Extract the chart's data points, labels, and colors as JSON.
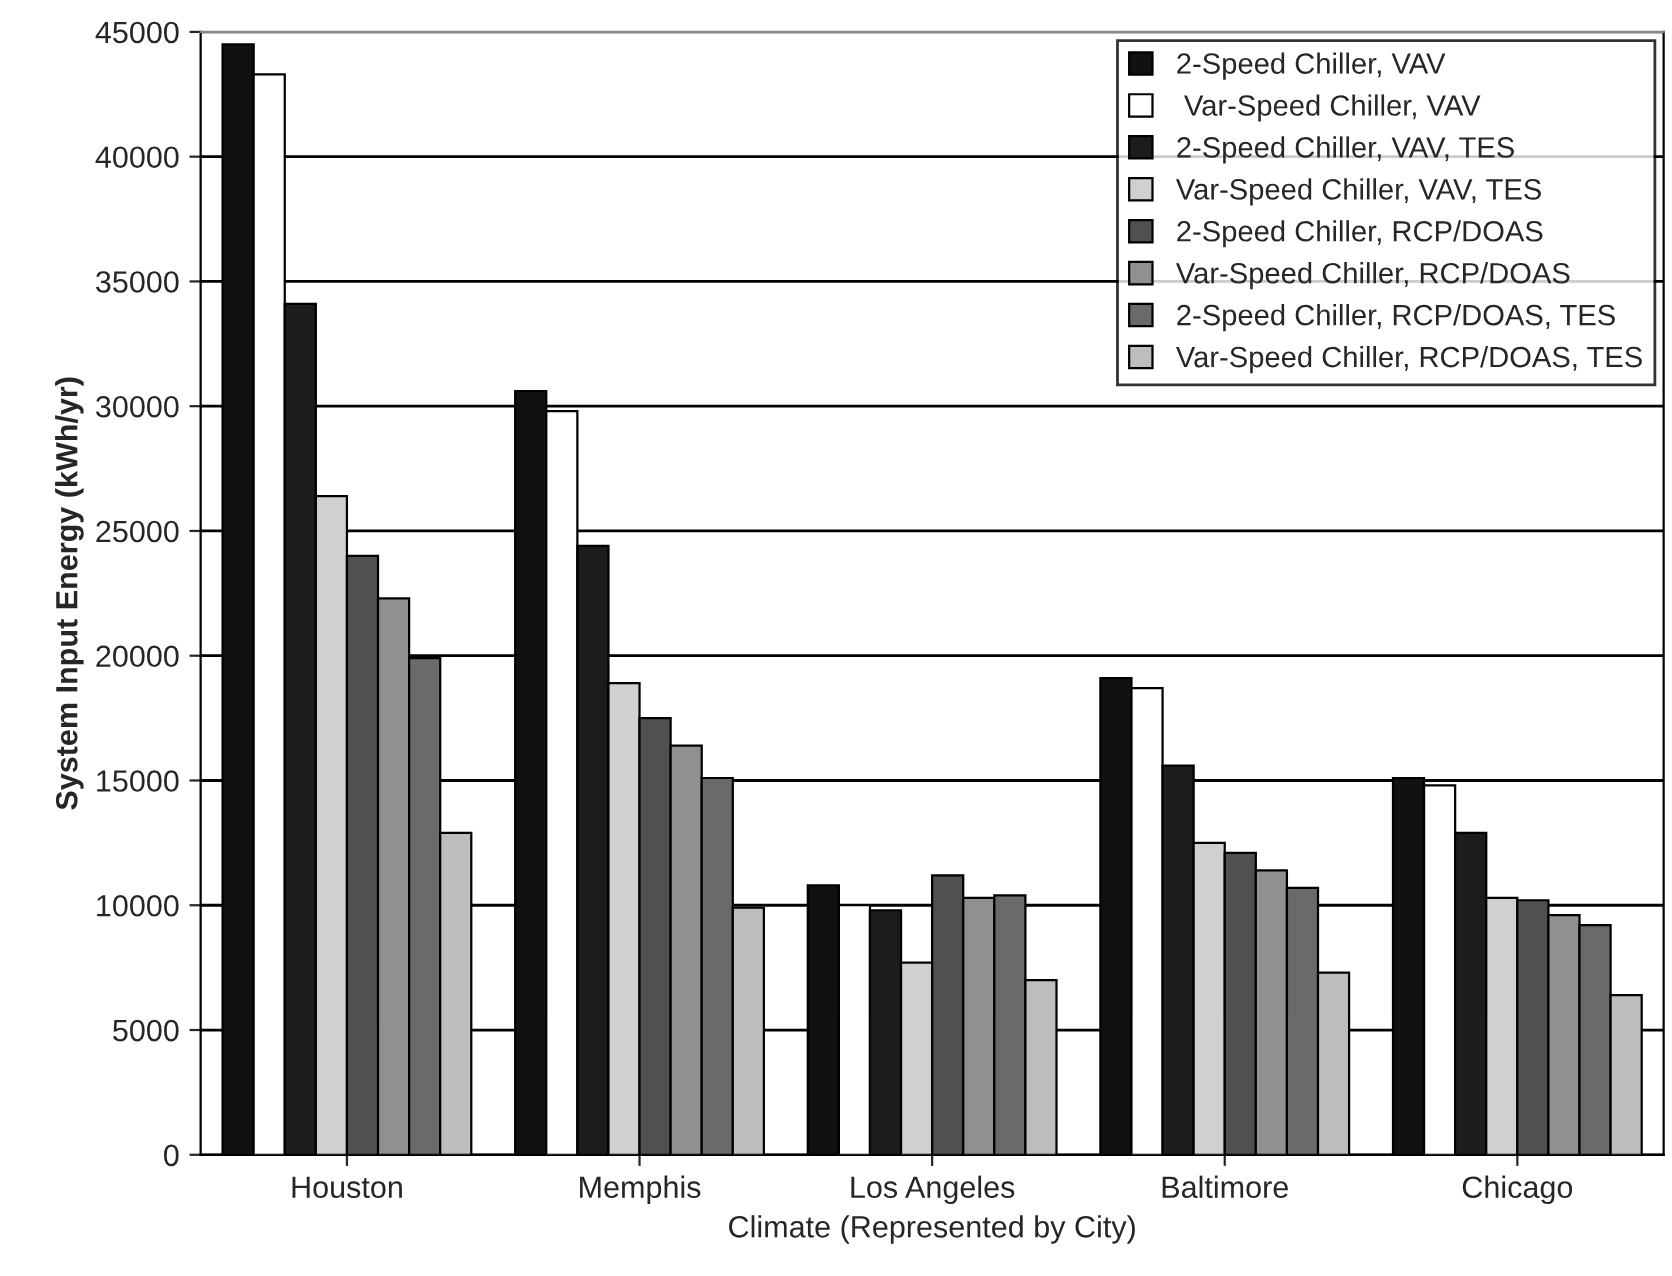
{
  "chart_data": {
    "type": "bar",
    "xlabel": "Climate (Represented by City)",
    "ylabel": "System Input Energy (kWh/yr)",
    "categories": [
      "Houston",
      "Memphis",
      "Los Angeles",
      "Baltimore",
      "Chicago"
    ],
    "series": [
      {
        "name": "2-Speed Chiller, VAV",
        "color": "#111111",
        "values": [
          44500,
          30600,
          10800,
          19100,
          15100
        ]
      },
      {
        "name": " Var-Speed Chiller, VAV",
        "color": "#ffffff",
        "values": [
          43300,
          29800,
          10000,
          18700,
          14800
        ]
      },
      {
        "name": "2-Speed Chiller, VAV, TES",
        "color": "#1c1c1c",
        "values": [
          34100,
          24400,
          9800,
          15600,
          12900
        ]
      },
      {
        "name": "Var-Speed Chiller, VAV, TES",
        "color": "#d0d0d0",
        "values": [
          26400,
          18900,
          7700,
          12500,
          10300
        ]
      },
      {
        "name": "2-Speed Chiller, RCP/DOAS",
        "color": "#505050",
        "values": [
          24000,
          17500,
          11200,
          12100,
          10200
        ]
      },
      {
        "name": "Var-Speed Chiller, RCP/DOAS",
        "color": "#909090",
        "values": [
          22300,
          16400,
          10300,
          11400,
          9600
        ]
      },
      {
        "name": "2-Speed Chiller, RCP/DOAS, TES",
        "color": "#6a6a6a",
        "values": [
          19900,
          15100,
          10400,
          10700,
          9200
        ]
      },
      {
        "name": "Var-Speed Chiller, RCP/DOAS, TES",
        "color": "#bdbdbd",
        "values": [
          12900,
          9900,
          7000,
          7300,
          6400
        ]
      }
    ],
    "ylim": [
      0,
      45000
    ],
    "yticks": [
      0,
      5000,
      10000,
      15000,
      20000,
      25000,
      30000,
      35000,
      40000,
      45000
    ],
    "grid": "y",
    "legend": "top right"
  }
}
